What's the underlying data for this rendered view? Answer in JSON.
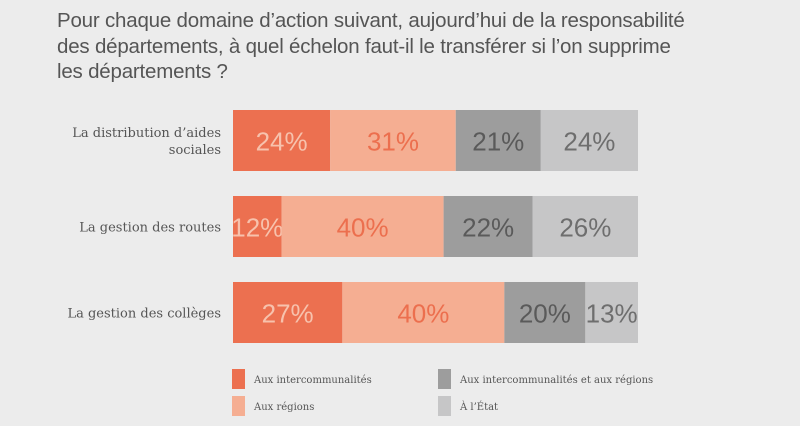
{
  "chart_data": {
    "type": "bar",
    "orientation": "horizontal",
    "stacked": true,
    "title": "Pour chaque domaine d’action suivant, aujourd’hui de la responsabilité des départements, à quel échelon faut-il le transférer si l’on supprime les départements ?",
    "title_lines": [
      "Pour chaque domaine d’action suivant, aujourd’hui de la responsabilité",
      "des départements, à quel échelon faut-il le transférer si l’on supprime",
      "les départements ?"
    ],
    "categories": [
      [
        "La distribution d’aides",
        "sociales"
      ],
      [
        "La gestion des routes"
      ],
      [
        "La gestion des collèges"
      ]
    ],
    "series": [
      {
        "name": "Aux intercommunalités",
        "color": "#ec7050",
        "label_color": "#f7c2ad",
        "values": [
          24,
          12,
          27
        ]
      },
      {
        "name": "Aux régions",
        "color": "#f5ae92",
        "label_color": "#ec6f4e",
        "values": [
          31,
          40,
          40
        ]
      },
      {
        "name": "Aux intercommunalités et aux régions",
        "color": "#9d9d9d",
        "label_color": "#5a5a5a",
        "values": [
          21,
          22,
          20
        ]
      },
      {
        "name": "À l’État",
        "color": "#c6c6c7",
        "label_color": "#6e6e6e",
        "values": [
          24,
          26,
          13
        ]
      }
    ],
    "value_suffix": "%",
    "xlim": [
      0,
      100
    ],
    "xlabel": "",
    "ylabel": "",
    "grid": false,
    "legend_position": "bottom",
    "legend_order": [
      0,
      2,
      1,
      3
    ]
  }
}
